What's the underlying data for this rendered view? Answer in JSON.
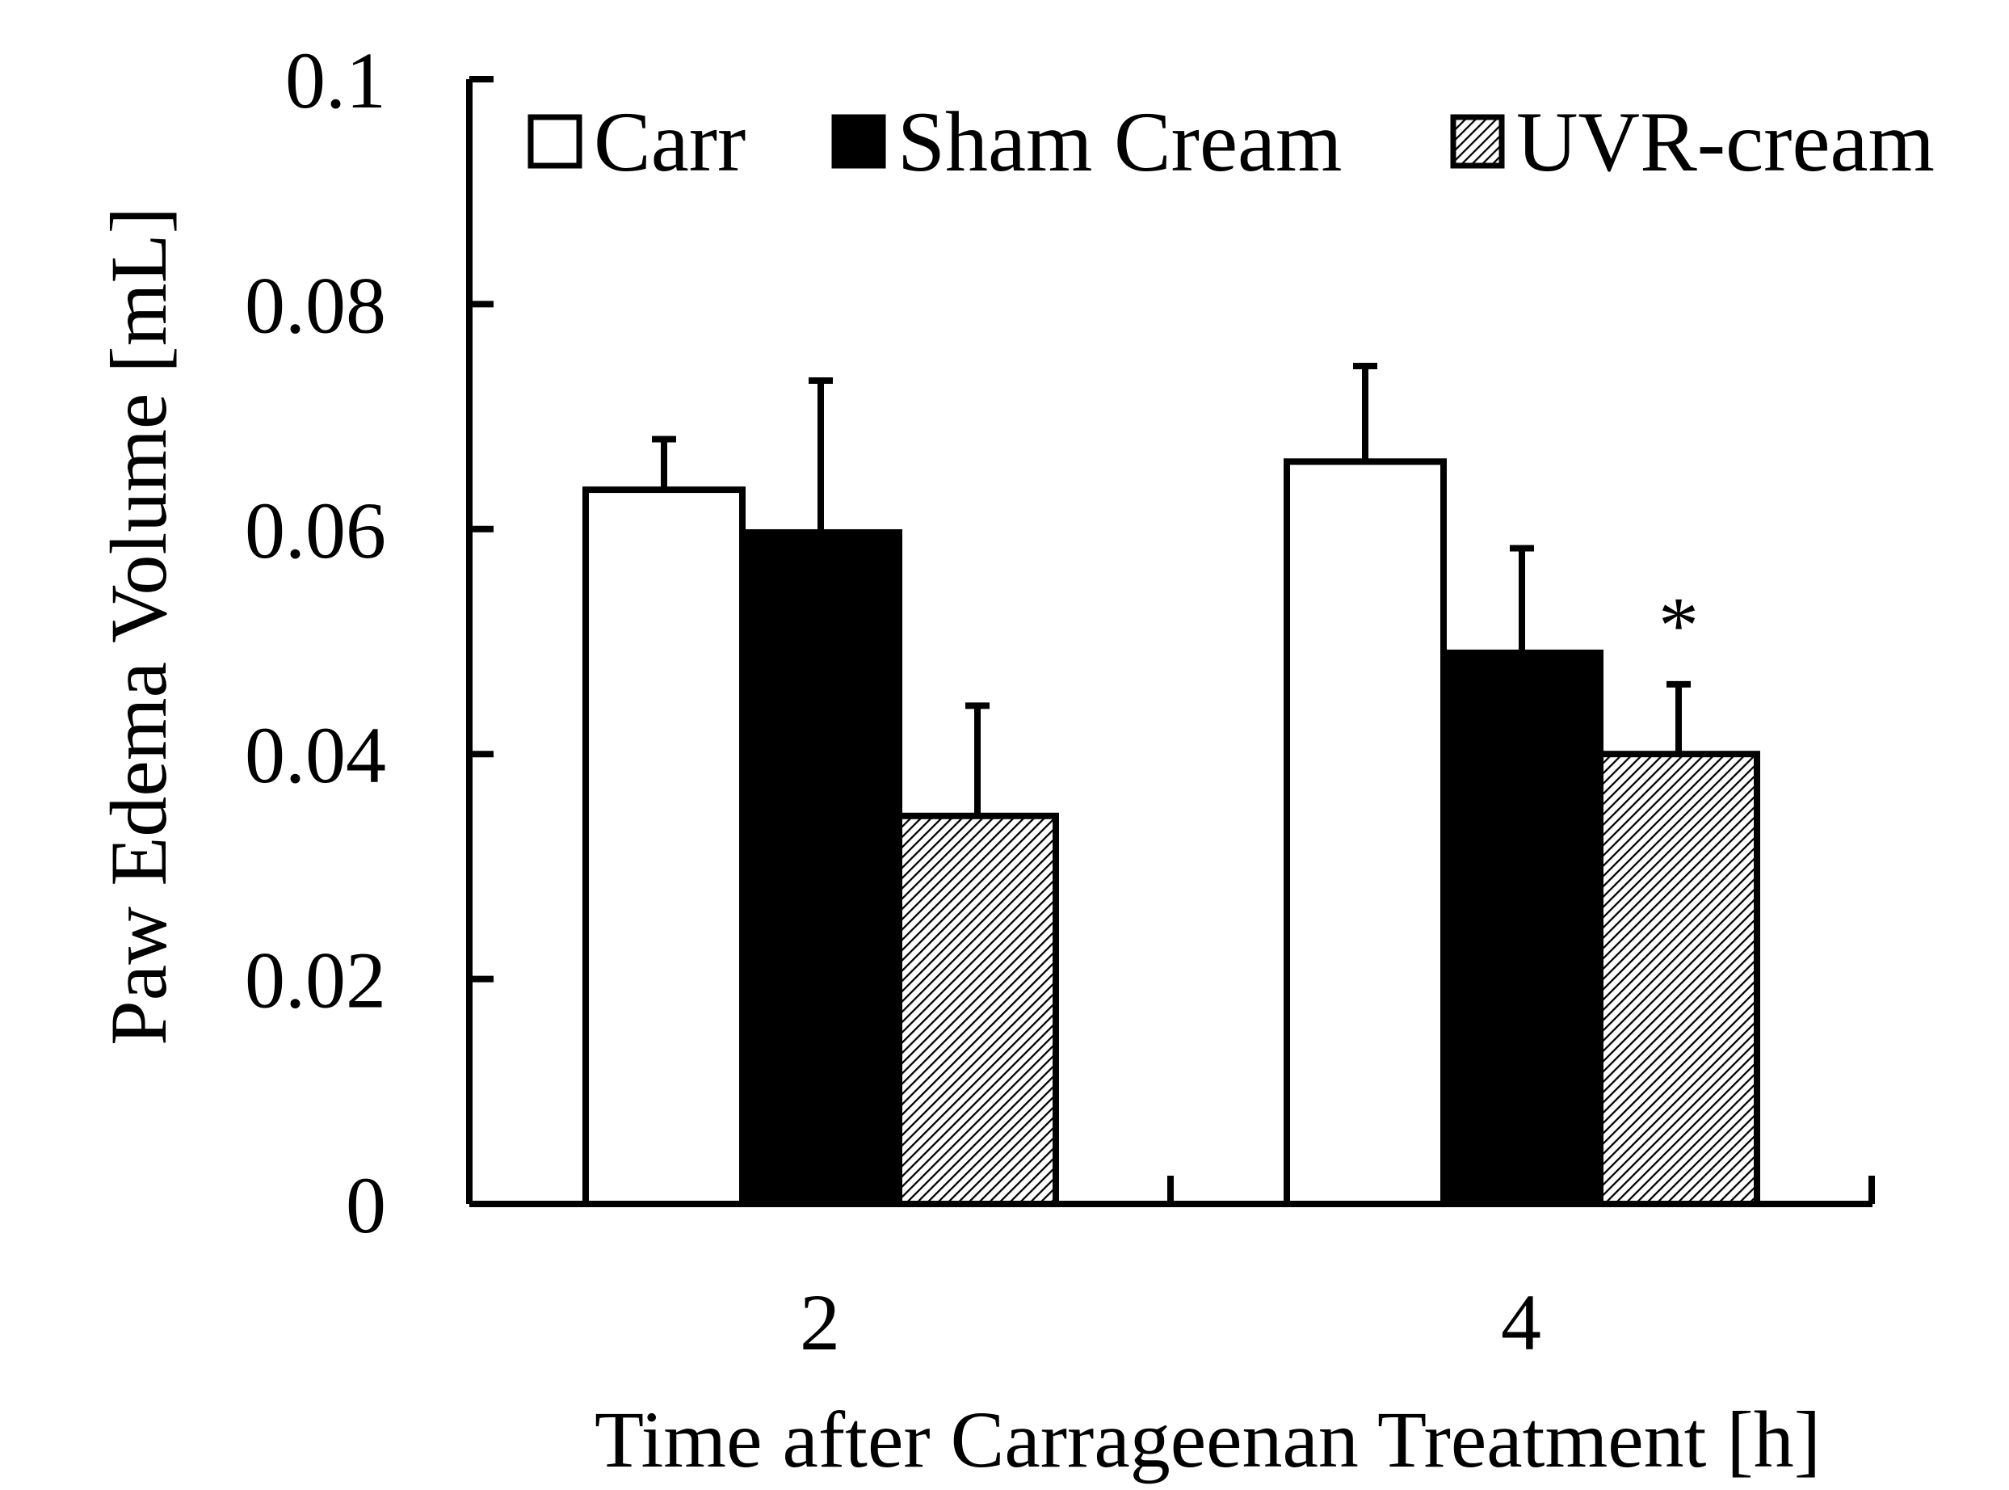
{
  "chart_data": {
    "type": "bar",
    "xlabel": "Time after Carrageenan Treatment [h]",
    "ylabel": "Paw Edema Volume [mL]",
    "ylim": [
      0,
      0.1
    ],
    "yticks": [
      "0",
      "0.02",
      "0.04",
      "0.06",
      "0.08",
      "0.1"
    ],
    "categories": [
      "2",
      "4"
    ],
    "legend_position": "top",
    "grid": false,
    "series": [
      {
        "name": "Carr",
        "fill": "white",
        "values": [
          0.0635,
          0.066
        ],
        "errors": [
          0.0045,
          0.0085
        ]
      },
      {
        "name": "Sham Cream",
        "fill": "black",
        "values": [
          0.0597,
          0.049
        ],
        "errors": [
          0.0135,
          0.0093
        ]
      },
      {
        "name": "UVR-cream",
        "fill": "hatched",
        "values": [
          0.0345,
          0.04
        ],
        "errors": [
          0.0098,
          0.0062
        ]
      }
    ],
    "annotations": [
      {
        "category": "4",
        "series": "UVR-cream",
        "text": "*"
      }
    ]
  }
}
